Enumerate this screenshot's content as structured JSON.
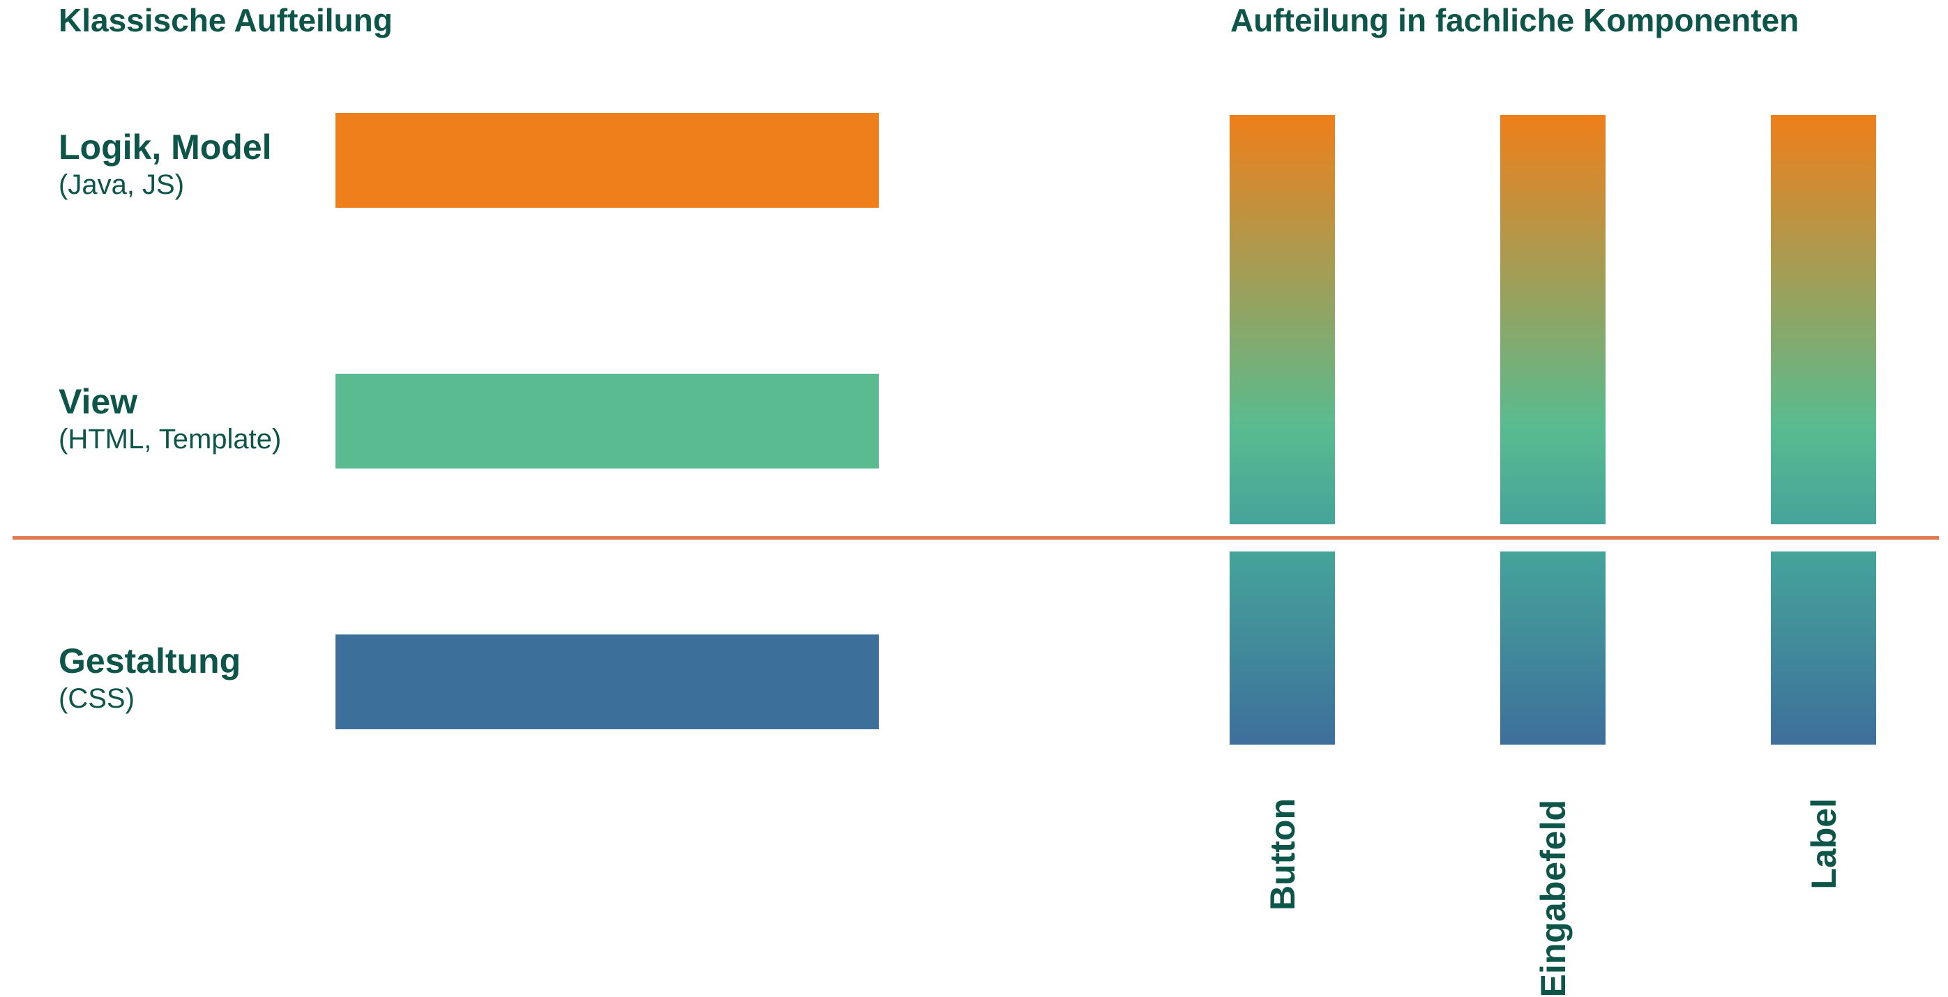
{
  "headings": {
    "classic": "Klassische Aufteilung",
    "components": "Aufteilung in fachliche Komponenten"
  },
  "layers": [
    {
      "title": "Logik, Model",
      "subtitle": "(Java, JS)",
      "color": "#ef7f1a"
    },
    {
      "title": "View",
      "subtitle": "(HTML, Template)",
      "color": "#59bb8f"
    },
    {
      "title": "Gestaltung",
      "subtitle": "(CSS)",
      "color": "#3d6f9b"
    }
  ],
  "components": [
    {
      "name": "Button"
    },
    {
      "name": "Eingabefeld"
    },
    {
      "name": "Label"
    }
  ],
  "colors": {
    "text": "#0d5548",
    "divider": "#e07a52",
    "orange": "#ef7f1a",
    "green": "#59bb8f",
    "teal": "#45a49a",
    "blue": "#3d6f9b"
  }
}
